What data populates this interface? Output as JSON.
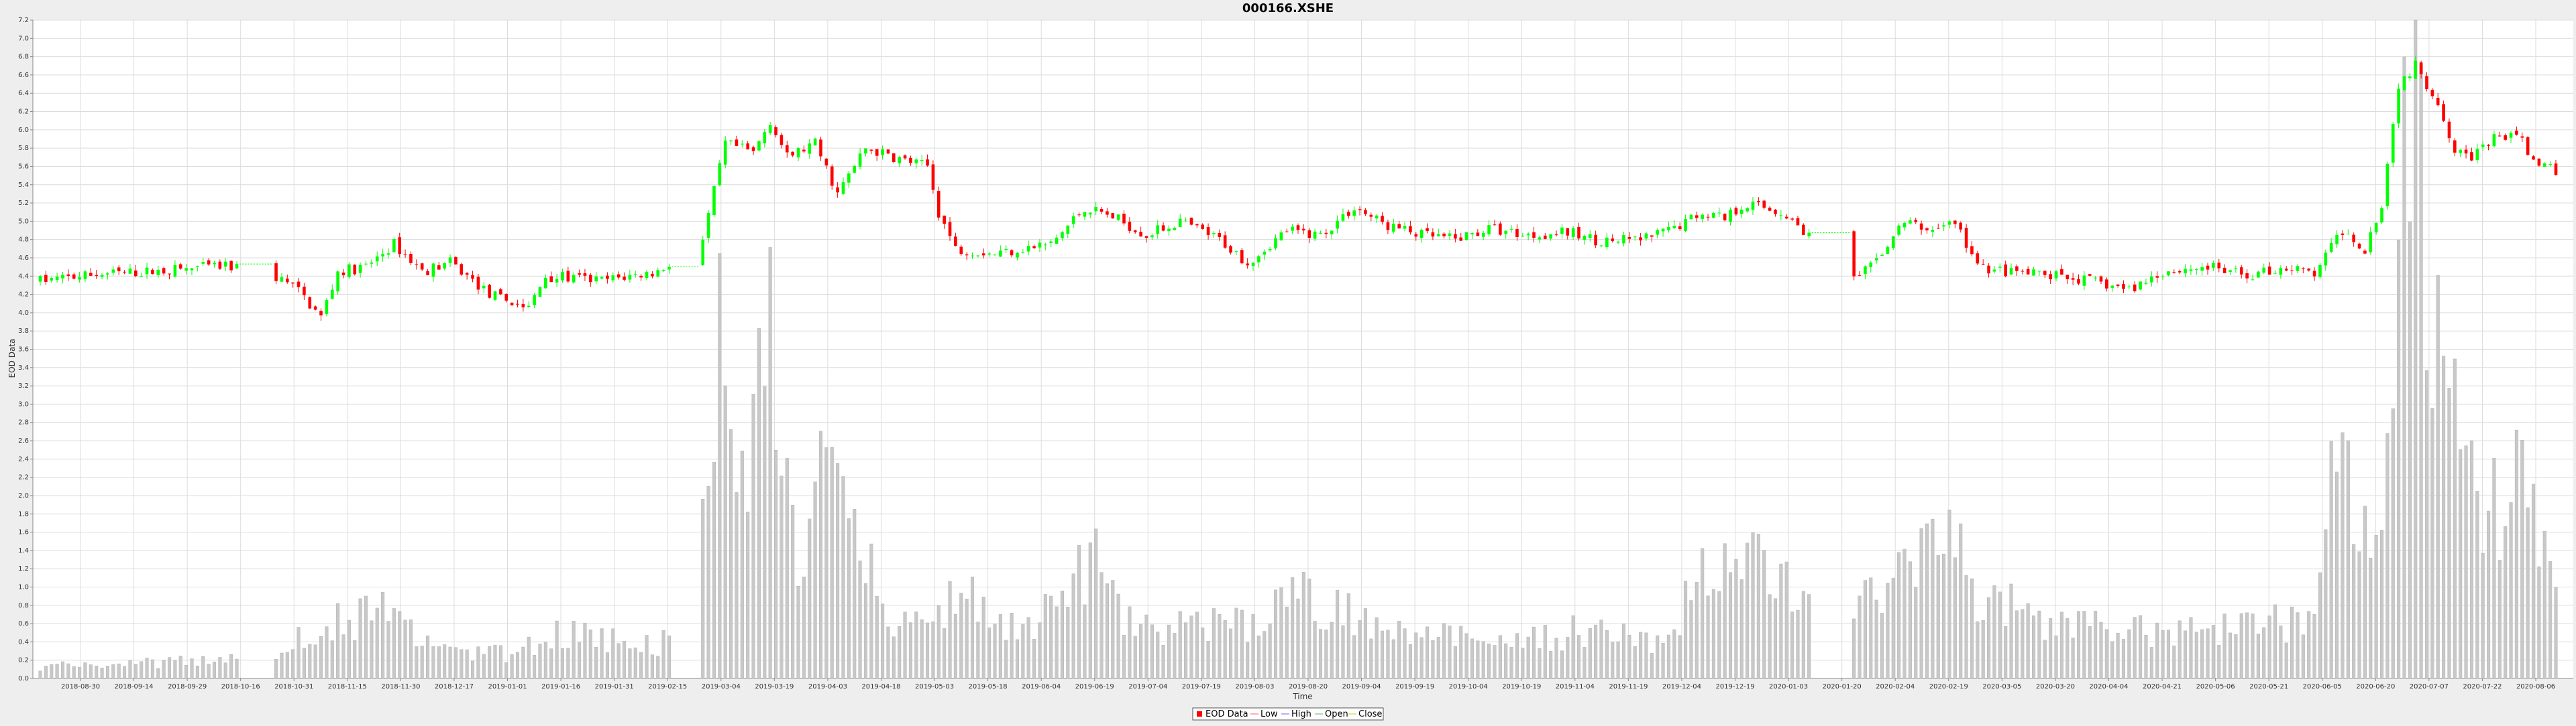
{
  "chart_data": {
    "type": "candlestick",
    "title": "000166.XSHE",
    "xlabel": "Time",
    "ylabel": "EOD Data",
    "ylim": [
      0.0,
      7.2
    ],
    "ytick_step": 0.2,
    "grid": true,
    "legend_position": "bottom-center",
    "legend": [
      "EOD Data",
      "Low",
      "High",
      "Open",
      "Close"
    ],
    "colors": {
      "up": "#00ff00",
      "down": "#ff0000",
      "volume": "#c8c8c8",
      "grid": "#dcdcdc",
      "plot_bg": "#ffffff",
      "page_bg": "#eeeeee",
      "legend_low": "#ff9999",
      "legend_high": "#9999ff",
      "legend_open": "#99cc99",
      "legend_close": "#dddd66"
    },
    "x_tick_labels": [
      "2018-08-30",
      "2018-09-14",
      "2018-09-29",
      "2018-10-16",
      "2018-10-31",
      "2018-11-15",
      "2018-11-30",
      "2018-12-17",
      "2019-01-01",
      "2019-01-16",
      "2019-01-31",
      "2019-02-15",
      "2019-03-04",
      "2019-03-19",
      "2019-04-03",
      "2019-04-18",
      "2019-05-03",
      "2019-05-18",
      "2019-06-04",
      "2019-06-19",
      "2019-07-04",
      "2019-07-19",
      "2019-08-03",
      "2019-08-20",
      "2019-09-04",
      "2019-09-19",
      "2019-10-04",
      "2019-10-19",
      "2019-11-04",
      "2019-11-19",
      "2019-12-04",
      "2019-12-19",
      "2020-01-03",
      "2020-01-20",
      "2020-02-04",
      "2020-02-19",
      "2020-03-05",
      "2020-03-20",
      "2020-04-04",
      "2020-04-21",
      "2020-05-06",
      "2020-05-21",
      "2020-06-05",
      "2020-06-20",
      "2020-07-07",
      "2020-07-22",
      "2020-08-06"
    ],
    "price_anchors": [
      [
        0,
        4.35
      ],
      [
        10,
        4.42
      ],
      [
        20,
        4.45
      ],
      [
        30,
        4.5
      ],
      [
        38,
        4.5
      ],
      [
        45,
        4.3
      ],
      [
        50,
        3.95
      ],
      [
        53,
        4.45
      ],
      [
        58,
        4.5
      ],
      [
        63,
        4.75
      ],
      [
        68,
        4.45
      ],
      [
        73,
        4.55
      ],
      [
        80,
        4.2
      ],
      [
        87,
        4.05
      ],
      [
        90,
        4.4
      ],
      [
        100,
        4.35
      ],
      [
        110,
        4.45
      ],
      [
        118,
        4.8
      ],
      [
        122,
        5.85
      ],
      [
        127,
        5.75
      ],
      [
        130,
        6.1
      ],
      [
        133,
        5.7
      ],
      [
        138,
        5.85
      ],
      [
        142,
        5.3
      ],
      [
        147,
        5.8
      ],
      [
        152,
        5.7
      ],
      [
        158,
        5.6
      ],
      [
        160,
        5.1
      ],
      [
        163,
        4.7
      ],
      [
        170,
        4.65
      ],
      [
        180,
        4.75
      ],
      [
        186,
        5.15
      ],
      [
        191,
        5.05
      ],
      [
        197,
        4.85
      ],
      [
        203,
        5.0
      ],
      [
        210,
        4.8
      ],
      [
        215,
        4.55
      ],
      [
        222,
        4.9
      ],
      [
        228,
        4.85
      ],
      [
        234,
        5.15
      ],
      [
        240,
        4.95
      ],
      [
        246,
        4.85
      ],
      [
        252,
        4.8
      ],
      [
        258,
        4.92
      ],
      [
        265,
        4.85
      ],
      [
        272,
        4.88
      ],
      [
        278,
        4.78
      ],
      [
        285,
        4.8
      ],
      [
        290,
        4.9
      ],
      [
        296,
        5.1
      ],
      [
        300,
        5.05
      ],
      [
        304,
        5.2
      ],
      [
        310,
        5.1
      ],
      [
        316,
        4.8
      ],
      [
        320,
        4.8
      ],
      [
        322,
        4.3
      ],
      [
        326,
        4.5
      ],
      [
        332,
        5.0
      ],
      [
        336,
        4.9
      ],
      [
        341,
        5.0
      ],
      [
        345,
        4.5
      ],
      [
        350,
        4.45
      ],
      [
        358,
        4.4
      ],
      [
        365,
        4.35
      ],
      [
        372,
        4.25
      ],
      [
        378,
        4.45
      ],
      [
        386,
        4.5
      ],
      [
        393,
        4.4
      ],
      [
        400,
        4.5
      ],
      [
        405,
        4.42
      ],
      [
        410,
        4.9
      ],
      [
        414,
        4.7
      ],
      [
        417,
        5.2
      ],
      [
        420,
        6.5
      ],
      [
        423,
        6.7
      ],
      [
        427,
        6.3
      ],
      [
        430,
        5.8
      ],
      [
        433,
        5.7
      ],
      [
        437,
        5.9
      ],
      [
        441,
        5.95
      ],
      [
        445,
        5.6
      ],
      [
        448,
        5.55
      ]
    ],
    "volume_anchors": [
      [
        0,
        0.15
      ],
      [
        30,
        0.22
      ],
      [
        42,
        0.25
      ],
      [
        48,
        0.65
      ],
      [
        56,
        0.75
      ],
      [
        62,
        0.8
      ],
      [
        70,
        0.35
      ],
      [
        85,
        0.3
      ],
      [
        92,
        0.6
      ],
      [
        110,
        0.4
      ],
      [
        115,
        0.8
      ],
      [
        119,
        2.2
      ],
      [
        121,
        4.2
      ],
      [
        124,
        2.3
      ],
      [
        127,
        2.8
      ],
      [
        130,
        4.3
      ],
      [
        132,
        2.3
      ],
      [
        136,
        1.6
      ],
      [
        140,
        2.5
      ],
      [
        145,
        2.2
      ],
      [
        150,
        0.8
      ],
      [
        158,
        0.6
      ],
      [
        163,
        1.2
      ],
      [
        175,
        0.5
      ],
      [
        187,
        1.5
      ],
      [
        195,
        0.6
      ],
      [
        215,
        0.7
      ],
      [
        225,
        1.0
      ],
      [
        240,
        0.7
      ],
      [
        260,
        0.4
      ],
      [
        275,
        0.6
      ],
      [
        290,
        0.4
      ],
      [
        295,
        1.5
      ],
      [
        305,
        1.4
      ],
      [
        316,
        0.8
      ],
      [
        323,
        1.0
      ],
      [
        335,
        1.4
      ],
      [
        341,
        2.0
      ],
      [
        345,
        1.0
      ],
      [
        360,
        0.7
      ],
      [
        380,
        0.6
      ],
      [
        395,
        0.7
      ],
      [
        405,
        0.7
      ],
      [
        409,
        3.7
      ],
      [
        413,
        1.6
      ],
      [
        417,
        2.5
      ],
      [
        420,
        5.8
      ],
      [
        423,
        7.2
      ],
      [
        425,
        5.5
      ],
      [
        428,
        3.2
      ],
      [
        433,
        2.6
      ],
      [
        438,
        2.0
      ],
      [
        442,
        2.4
      ],
      [
        446,
        1.5
      ],
      [
        448,
        1.0
      ]
    ],
    "total_bars": 449,
    "date_gaps": [
      [
        36,
        41
      ],
      [
        113,
        117
      ],
      [
        316,
        322
      ]
    ]
  }
}
